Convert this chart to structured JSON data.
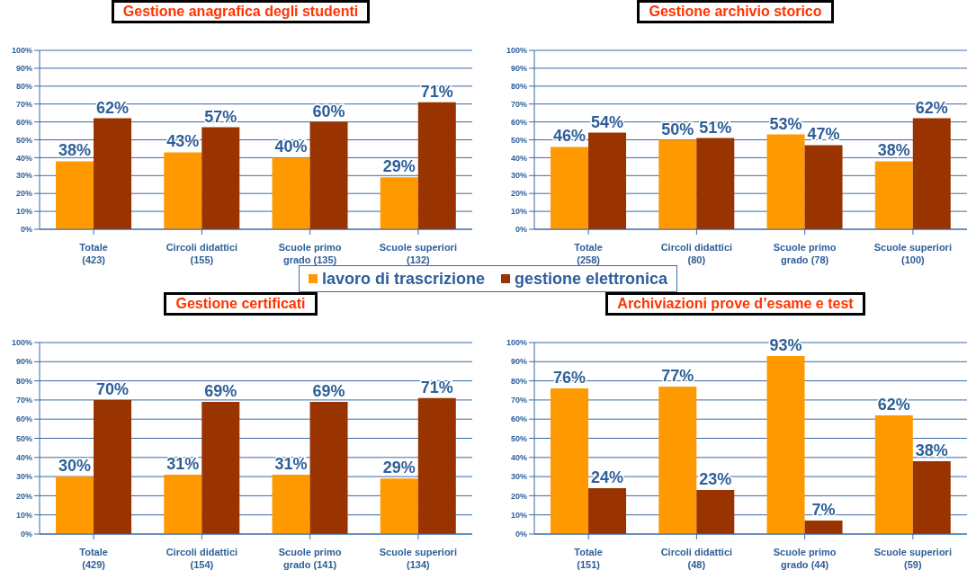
{
  "chart_data": [
    {
      "type": "bar",
      "title": "Gestione anagrafica degli studenti",
      "categories": [
        "Totale (423)",
        "Circoli didattici (155)",
        "Scuole primo grado (135)",
        "Scuole superiori (132)"
      ],
      "series": [
        {
          "name": "lavoro di trascrizione",
          "color": "#ff9900",
          "values": [
            38,
            43,
            40,
            29
          ],
          "value_labels": [
            "38%",
            "43%",
            "40%",
            "29%"
          ]
        },
        {
          "name": "gestione elettronica",
          "color": "#993300",
          "values": [
            62,
            57,
            60,
            71
          ],
          "value_labels": [
            "62%",
            "57%",
            "60%",
            "71%"
          ]
        }
      ],
      "ylim": [
        0,
        100
      ],
      "yticks": [
        {
          "value": 0,
          "label": "0%"
        },
        {
          "value": 10,
          "label": "10%"
        },
        {
          "value": 20,
          "label": "20%"
        },
        {
          "value": 30,
          "label": "30%"
        },
        {
          "value": 40,
          "label": "40%"
        },
        {
          "value": 50,
          "label": "50%"
        },
        {
          "value": 60,
          "label": "60%"
        },
        {
          "value": 70,
          "label": "70%"
        },
        {
          "value": 80,
          "label": "80%"
        },
        {
          "value": 90,
          "label": "90%"
        },
        {
          "value": 100,
          "label": "100%"
        }
      ],
      "grid": "y",
      "legend": "bottom right"
    },
    {
      "type": "bar",
      "title": "Gestione archivio storico",
      "categories": [
        "Totale (258)",
        "Circoli didattici (80)",
        "Scuole primo grado (78)",
        "Scuole superiori (100)"
      ],
      "series": [
        {
          "color": "#ff9900",
          "values": [
            46,
            50,
            53,
            38
          ],
          "value_labels": [
            "46%",
            "50%",
            "53%",
            "38%"
          ]
        },
        {
          "color": "#993300",
          "values": [
            54,
            51,
            47,
            62
          ],
          "value_labels": [
            "54%",
            "51%",
            "47%",
            "62%"
          ]
        }
      ],
      "ylim": [
        0,
        100
      ],
      "yticks": [
        {
          "value": 0,
          "label": "0%"
        },
        {
          "value": 10,
          "label": "10%"
        },
        {
          "value": 20,
          "label": "20%"
        },
        {
          "value": 30,
          "label": "30%"
        },
        {
          "value": 40,
          "label": "40%"
        },
        {
          "value": 50,
          "label": "50%"
        },
        {
          "value": 60,
          "label": "60%"
        },
        {
          "value": 70,
          "label": "70%"
        },
        {
          "value": 80,
          "label": "80%"
        },
        {
          "value": 90,
          "label": "90%"
        },
        {
          "value": 100,
          "label": "100%"
        }
      ],
      "grid": "y"
    },
    {
      "type": "bar",
      "title": "Gestione certificati",
      "categories": [
        "Totale (429)",
        "Circoli didattici (154)",
        "Scuole primo grado (141)",
        "Scuole superiori (134)"
      ],
      "series": [
        {
          "color": "#ff9900",
          "values": [
            30,
            31,
            31,
            29
          ],
          "value_labels": [
            "30%",
            "31%",
            "31%",
            "29%"
          ]
        },
        {
          "color": "#993300",
          "values": [
            70,
            69,
            69,
            71
          ],
          "value_labels": [
            "70%",
            "69%",
            "69%",
            "71%"
          ]
        }
      ],
      "ylim": [
        0,
        100
      ],
      "yticks": [
        {
          "value": 0,
          "label": "0%"
        },
        {
          "value": 10,
          "label": "10%"
        },
        {
          "value": 20,
          "label": "20%"
        },
        {
          "value": 30,
          "label": "30%"
        },
        {
          "value": 40,
          "label": "40%"
        },
        {
          "value": 50,
          "label": "50%"
        },
        {
          "value": 60,
          "label": "60%"
        },
        {
          "value": 70,
          "label": "70%"
        },
        {
          "value": 80,
          "label": "80%"
        },
        {
          "value": 90,
          "label": "90%"
        },
        {
          "value": 100,
          "label": "100%"
        }
      ],
      "grid": "y"
    },
    {
      "type": "bar",
      "title": "Archiviazioni prove d’esame e test",
      "categories": [
        "Totale (151)",
        "Circoli didattici (48)",
        "Scuole primo grado (44)",
        "Scuole superiori (59)"
      ],
      "series": [
        {
          "color": "#ff9900",
          "values": [
            76,
            77,
            93,
            62
          ],
          "value_labels": [
            "76%",
            "77%",
            "93%",
            "62%"
          ]
        },
        {
          "color": "#993300",
          "values": [
            24,
            23,
            7,
            38
          ],
          "value_labels": [
            "24%",
            "23%",
            "7%",
            "38%"
          ]
        }
      ],
      "ylim": [
        0,
        100
      ],
      "yticks": [
        {
          "value": 0,
          "label": "0%"
        },
        {
          "value": 10,
          "label": "10%"
        },
        {
          "value": 20,
          "label": "20%"
        },
        {
          "value": 30,
          "label": "30%"
        },
        {
          "value": 40,
          "label": "40%"
        },
        {
          "value": 50,
          "label": "50%"
        },
        {
          "value": 60,
          "label": "60%"
        },
        {
          "value": 70,
          "label": "70%"
        },
        {
          "value": 80,
          "label": "80%"
        },
        {
          "value": 90,
          "label": "90%"
        },
        {
          "value": 100,
          "label": "100%"
        }
      ],
      "grid": "y"
    }
  ]
}
